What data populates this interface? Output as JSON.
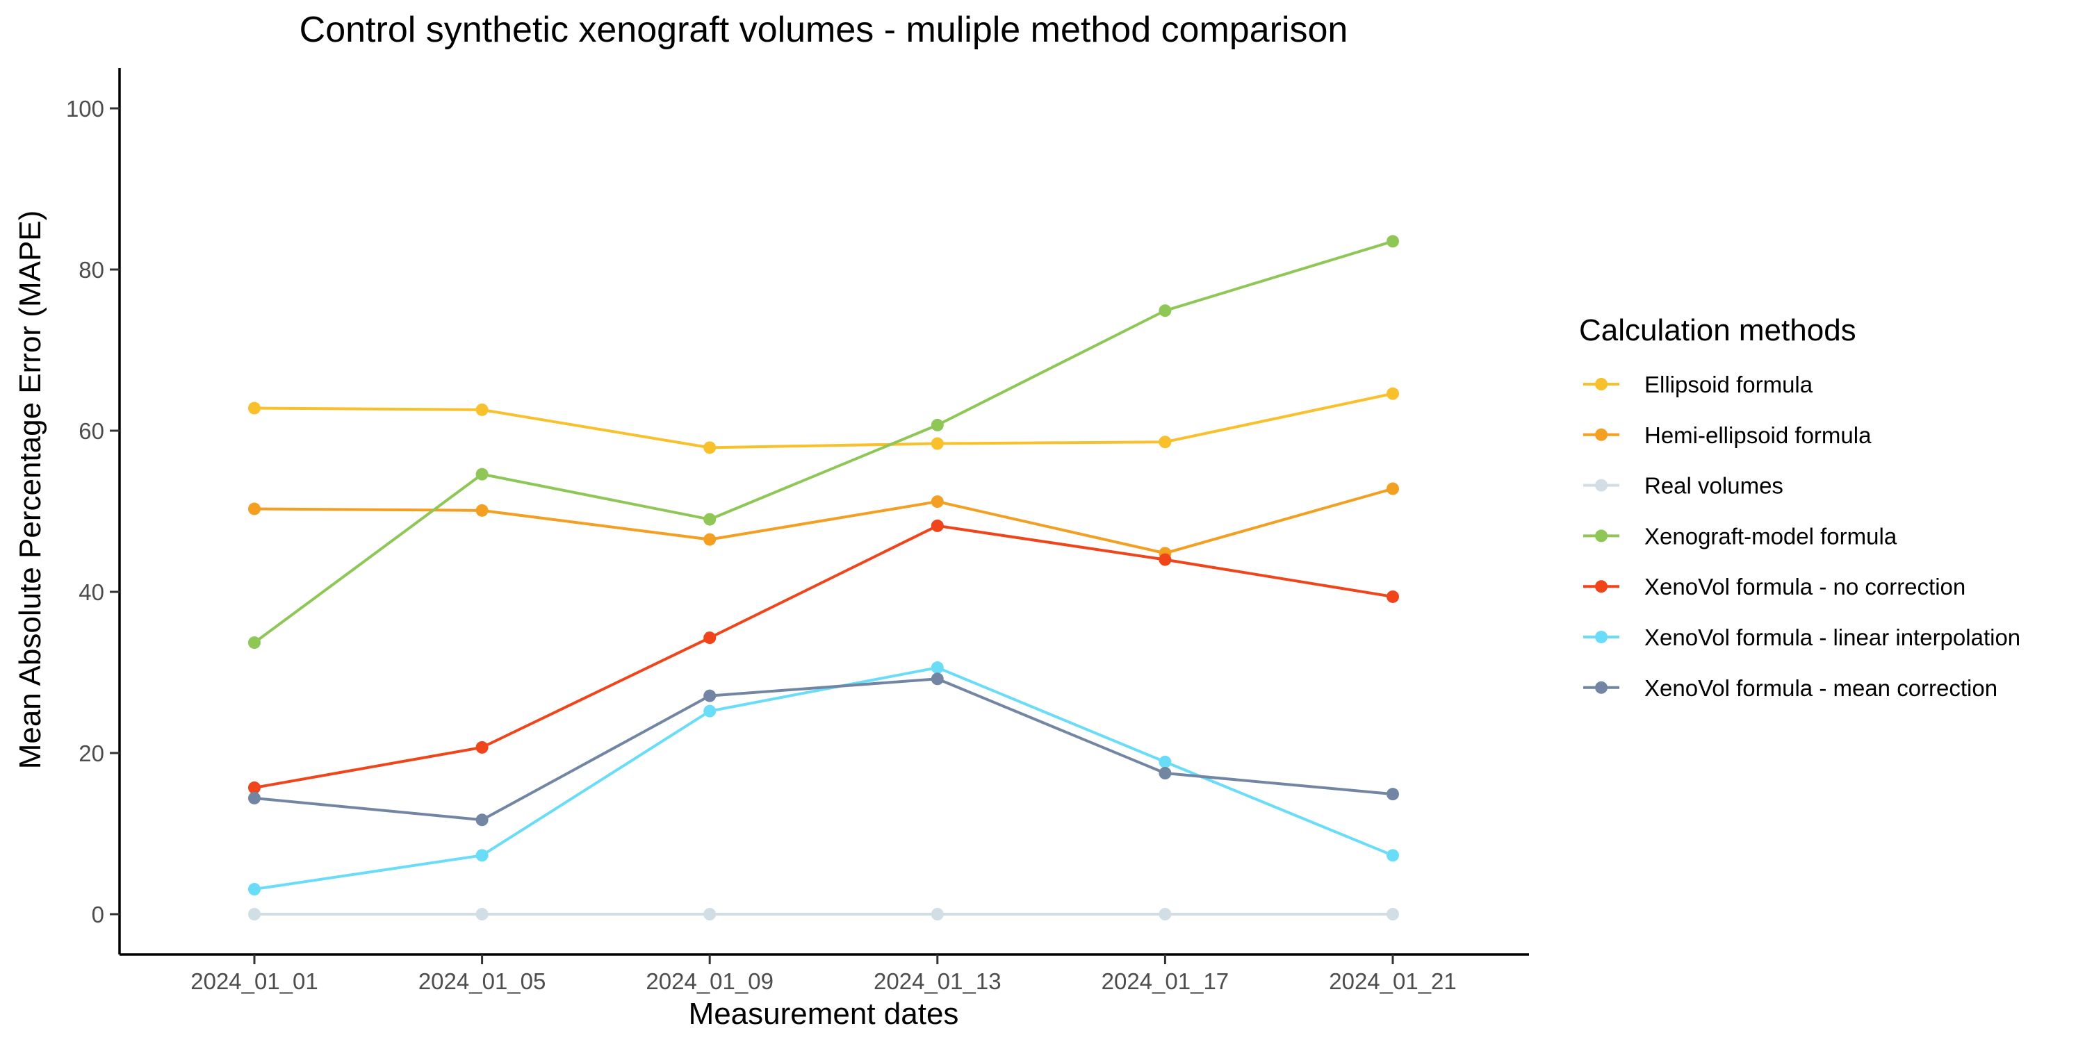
{
  "chart_data": {
    "type": "line",
    "title": "Control synthetic xenograft volumes - muliple method comparison",
    "xlabel": "Measurement dates",
    "ylabel": "Mean Absolute Percentage Error (MAPE)",
    "categories": [
      "2024_01_01",
      "2024_01_05",
      "2024_01_09",
      "2024_01_13",
      "2024_01_17",
      "2024_01_21"
    ],
    "ylim": [
      -5,
      105
    ],
    "yticks": [
      0,
      20,
      40,
      60,
      80,
      100
    ],
    "grid": false,
    "legend": {
      "title": "Calculation methods",
      "placement": "right"
    },
    "series": [
      {
        "name": "Ellipsoid formula",
        "color": "#F8C02B",
        "values": [
          62.8,
          62.6,
          57.9,
          58.4,
          58.6,
          64.6
        ]
      },
      {
        "name": "Hemi-ellipsoid formula",
        "color": "#F29F22",
        "values": [
          50.3,
          50.1,
          46.5,
          51.2,
          44.8,
          52.8
        ]
      },
      {
        "name": "Real volumes",
        "color": "#D2DEE5",
        "values": [
          0,
          0,
          0,
          0,
          0,
          0
        ]
      },
      {
        "name": "Xenograft-model formula",
        "color": "#8FC756",
        "values": [
          33.7,
          54.6,
          49.0,
          60.7,
          74.9,
          83.5
        ]
      },
      {
        "name": "XenoVol formula - no correction",
        "color": "#F0441A",
        "values": [
          15.7,
          20.7,
          34.3,
          48.2,
          44.0,
          39.4
        ]
      },
      {
        "name": "XenoVol formula - linear interpolation",
        "color": "#69DDF8",
        "values": [
          3.1,
          7.3,
          25.2,
          30.6,
          18.9,
          7.3
        ]
      },
      {
        "name": "XenoVol formula - mean correction",
        "color": "#7286A3",
        "values": [
          14.4,
          11.7,
          27.1,
          29.2,
          17.5,
          14.9
        ]
      }
    ]
  }
}
